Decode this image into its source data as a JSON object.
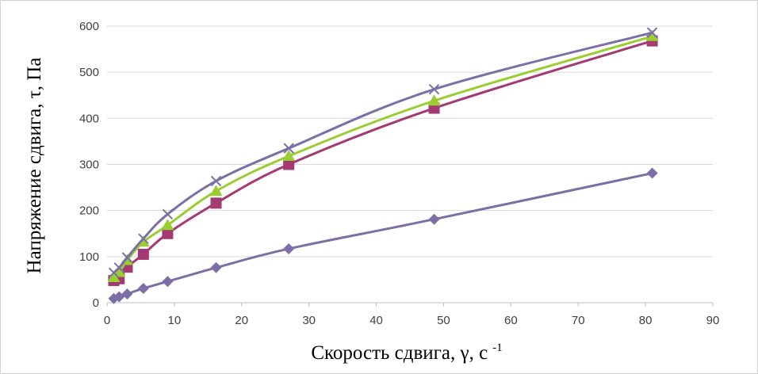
{
  "chart_data": {
    "type": "scatter",
    "title": "",
    "xlabel": "Скорость сдвига, γ, с",
    "xlabel_superscript": "-1",
    "ylabel": "Напряжение сдвига, τ, Па",
    "xlim": [
      0,
      90
    ],
    "ylim": [
      0,
      600
    ],
    "xticks": [
      0,
      10,
      20,
      30,
      40,
      50,
      60,
      70,
      80,
      90
    ],
    "yticks": [
      0,
      100,
      200,
      300,
      400,
      500,
      600
    ],
    "grid": "horizontal",
    "legend": "none",
    "series": [
      {
        "marker": "diamond",
        "color": "#7b6fa6",
        "x": [
          1.0,
          1.8,
          3.0,
          5.4,
          9.0,
          16.2,
          27.0,
          48.6,
          81.0
        ],
        "y": [
          9,
          13,
          19,
          31,
          46,
          76,
          117,
          181,
          281
        ]
      },
      {
        "marker": "square",
        "color": "#a33a72",
        "x": [
          1.0,
          1.8,
          3.0,
          5.4,
          9.0,
          16.2,
          27.0,
          48.6,
          81.0
        ],
        "y": [
          48,
          52,
          77,
          105,
          150,
          216,
          300,
          422,
          568
        ]
      },
      {
        "marker": "triangle",
        "color": "#9acd32",
        "x": [
          1.0,
          1.8,
          3.0,
          5.4,
          9.0,
          16.2,
          27.0,
          48.6,
          81.0
        ],
        "y": [
          55,
          66,
          92,
          132,
          168,
          242,
          318,
          438,
          578
        ]
      },
      {
        "marker": "x",
        "color": "#7b6fa6",
        "x": [
          1.0,
          1.8,
          3.0,
          5.4,
          9.0,
          16.2,
          27.0,
          48.6,
          81.0
        ],
        "y": [
          65,
          76,
          98,
          139,
          192,
          264,
          335,
          463,
          586
        ]
      }
    ]
  }
}
